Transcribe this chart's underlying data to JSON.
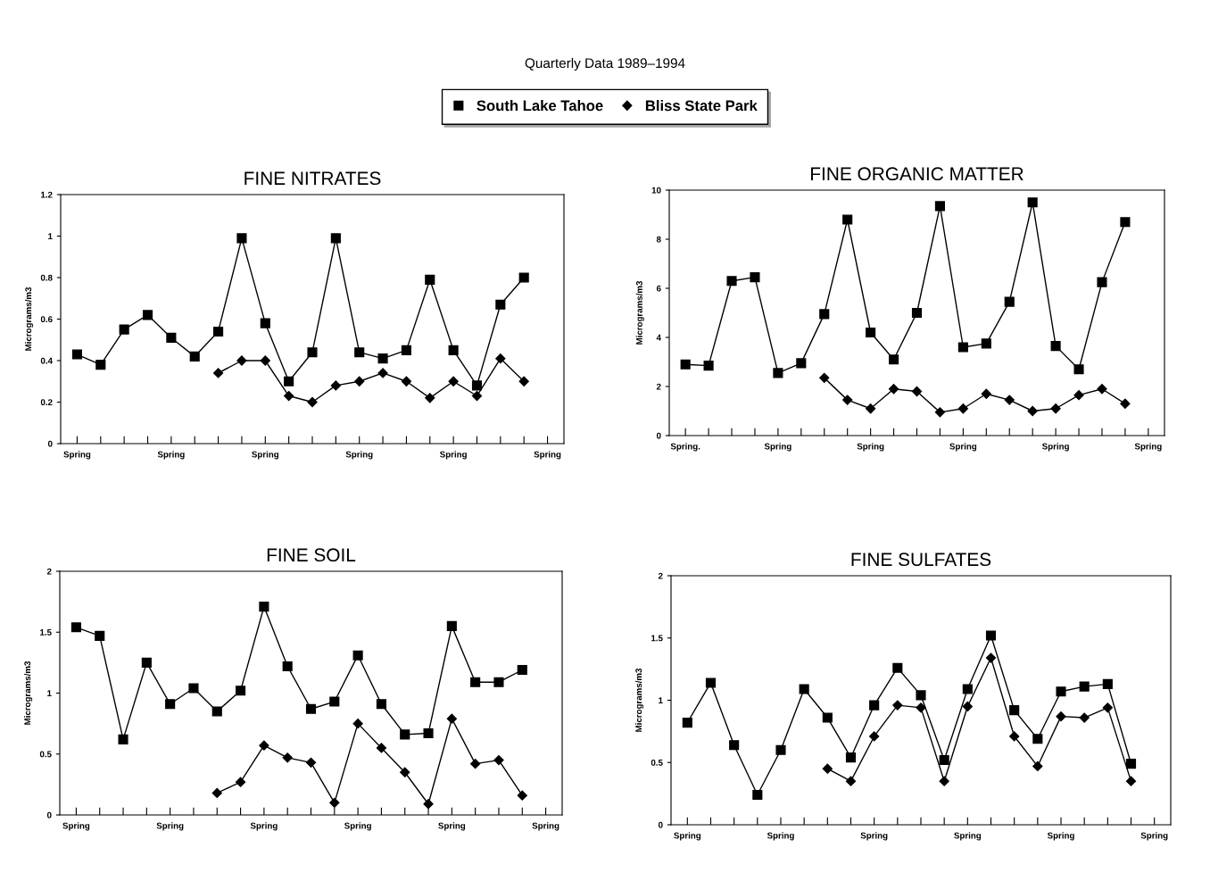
{
  "chart_data": [
    {
      "type": "line",
      "title": "FINE NITRATES",
      "ylabel": "Micrograms/m3",
      "annotations": [
        "Quarterly Data 1989–1994"
      ],
      "legend": "top",
      "categories": [
        "Spring",
        null,
        null,
        null,
        "Spring",
        null,
        null,
        null,
        "Spring",
        null,
        null,
        null,
        "Spring",
        null,
        null,
        null,
        "Spring",
        null,
        null,
        null,
        "Spring"
      ],
      "ylim": [
        0,
        1.2
      ],
      "yticks": [
        0,
        0.2,
        0.4,
        0.6,
        0.8,
        1,
        1.2
      ],
      "grid": false,
      "line_style": "solid",
      "series": [
        {
          "name": "South Lake Tahoe",
          "color": "#000000",
          "marker": "square",
          "values": [
            0.43,
            0.38,
            0.55,
            0.62,
            0.51,
            0.42,
            0.54,
            0.99,
            0.58,
            0.3,
            0.44,
            0.99,
            0.44,
            0.41,
            0.45,
            0.79,
            0.45,
            0.28,
            0.67,
            0.8,
            null
          ]
        },
        {
          "name": "Bliss State Park",
          "color": "#000000",
          "marker": "diamond",
          "values": [
            null,
            null,
            null,
            null,
            null,
            null,
            0.34,
            0.4,
            0.4,
            0.23,
            0.2,
            0.28,
            0.3,
            0.34,
            0.3,
            0.22,
            0.3,
            0.23,
            0.41,
            0.3,
            null
          ]
        }
      ]
    },
    {
      "type": "line",
      "title": "FINE ORGANIC MATTER",
      "ylabel": "Micrograms/m3",
      "categories": [
        "Spring.",
        null,
        null,
        null,
        "Spring",
        null,
        null,
        null,
        "Spring",
        null,
        null,
        null,
        "Spring",
        null,
        null,
        null,
        "Spring",
        null,
        null,
        null,
        "Spring"
      ],
      "ylim": [
        0,
        10
      ],
      "yticks": [
        0,
        2,
        4,
        6,
        8,
        10
      ],
      "grid": false,
      "line_style": "solid",
      "series": [
        {
          "color": "#000000",
          "marker": "square",
          "values": [
            2.9,
            2.85,
            6.3,
            6.45,
            2.55,
            2.95,
            4.95,
            8.8,
            4.2,
            3.1,
            5.0,
            9.35,
            3.6,
            3.75,
            5.45,
            9.5,
            3.65,
            2.7,
            6.25,
            8.7,
            null
          ]
        },
        {
          "color": "#000000",
          "marker": "diamond",
          "values": [
            null,
            null,
            null,
            null,
            null,
            null,
            2.35,
            1.45,
            1.1,
            1.9,
            1.8,
            0.95,
            1.1,
            1.7,
            1.45,
            1.0,
            1.1,
            1.65,
            1.9,
            1.3,
            null
          ]
        }
      ]
    },
    {
      "type": "line",
      "title": "FINE SOIL",
      "ylabel": "Micrograms/m3",
      "categories": [
        "Spring",
        null,
        null,
        null,
        "Spring",
        null,
        null,
        null,
        "Spring",
        null,
        null,
        null,
        "Spring",
        null,
        null,
        null,
        "Spring",
        null,
        null,
        null,
        "Spring"
      ],
      "ylim": [
        0,
        2
      ],
      "yticks": [
        0,
        0.5,
        1,
        1.5,
        2
      ],
      "grid": false,
      "line_style": "solid",
      "series": [
        {
          "color": "#000000",
          "marker": "square",
          "values": [
            1.54,
            1.47,
            0.62,
            1.25,
            0.91,
            1.04,
            0.85,
            1.02,
            1.71,
            1.22,
            0.87,
            0.93,
            1.31,
            0.91,
            0.66,
            0.67,
            1.55,
            1.09,
            1.09,
            1.19,
            null
          ]
        },
        {
          "color": "#000000",
          "marker": "diamond",
          "values": [
            null,
            null,
            null,
            null,
            null,
            null,
            0.18,
            0.27,
            0.57,
            0.47,
            0.43,
            0.1,
            0.75,
            0.55,
            0.35,
            0.09,
            0.79,
            0.42,
            0.45,
            0.16,
            null
          ]
        }
      ]
    },
    {
      "type": "line",
      "title": "FINE SULFATES",
      "ylabel": "Micrograms/m3",
      "categories": [
        "Spring",
        null,
        null,
        null,
        "Spring",
        null,
        null,
        null,
        "Spring",
        null,
        null,
        null,
        "Spring",
        null,
        null,
        null,
        "Spring",
        null,
        null,
        null,
        "Spring"
      ],
      "ylim": [
        0,
        2
      ],
      "yticks": [
        0,
        0.5,
        1,
        1.5,
        2
      ],
      "grid": false,
      "line_style": "solid",
      "series": [
        {
          "color": "#000000",
          "marker": "square",
          "values": [
            0.82,
            1.14,
            0.64,
            0.24,
            0.6,
            1.09,
            0.86,
            0.54,
            0.96,
            1.26,
            1.04,
            0.52,
            1.09,
            1.52,
            0.92,
            0.69,
            1.07,
            1.11,
            1.13,
            0.49,
            null
          ]
        },
        {
          "color": "#000000",
          "marker": "diamond",
          "values": [
            null,
            null,
            null,
            null,
            null,
            null,
            0.45,
            0.35,
            0.71,
            0.96,
            0.94,
            0.35,
            0.95,
            1.34,
            0.71,
            0.47,
            0.87,
            0.86,
            0.94,
            0.35,
            null
          ]
        }
      ]
    }
  ]
}
